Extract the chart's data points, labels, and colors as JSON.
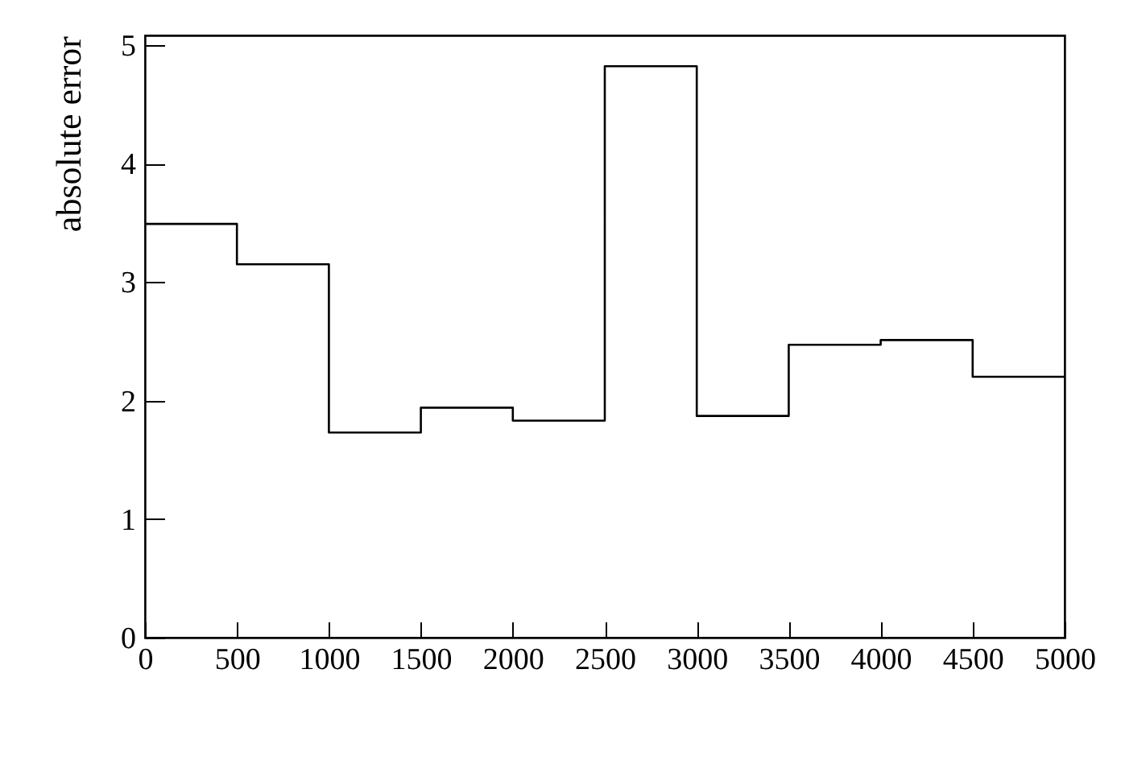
{
  "chart_data": {
    "type": "histogram",
    "ylabel": "absolute error",
    "bins": [
      0,
      500,
      1000,
      1500,
      2000,
      2500,
      3000,
      3500,
      4000,
      4500,
      5000
    ],
    "values": [
      3.49,
      3.15,
      1.73,
      1.94,
      1.83,
      4.82,
      1.87,
      2.47,
      2.51,
      2.2
    ],
    "color": "#000000",
    "xlim": [
      0,
      5000
    ],
    "xticks": [
      0,
      500,
      1000,
      1500,
      2000,
      2500,
      3000,
      3500,
      4000,
      4500,
      5000
    ],
    "ylim": [
      0,
      5.08
    ],
    "yticks": [
      0,
      1,
      2,
      3,
      4,
      5
    ],
    "grid": false
  }
}
